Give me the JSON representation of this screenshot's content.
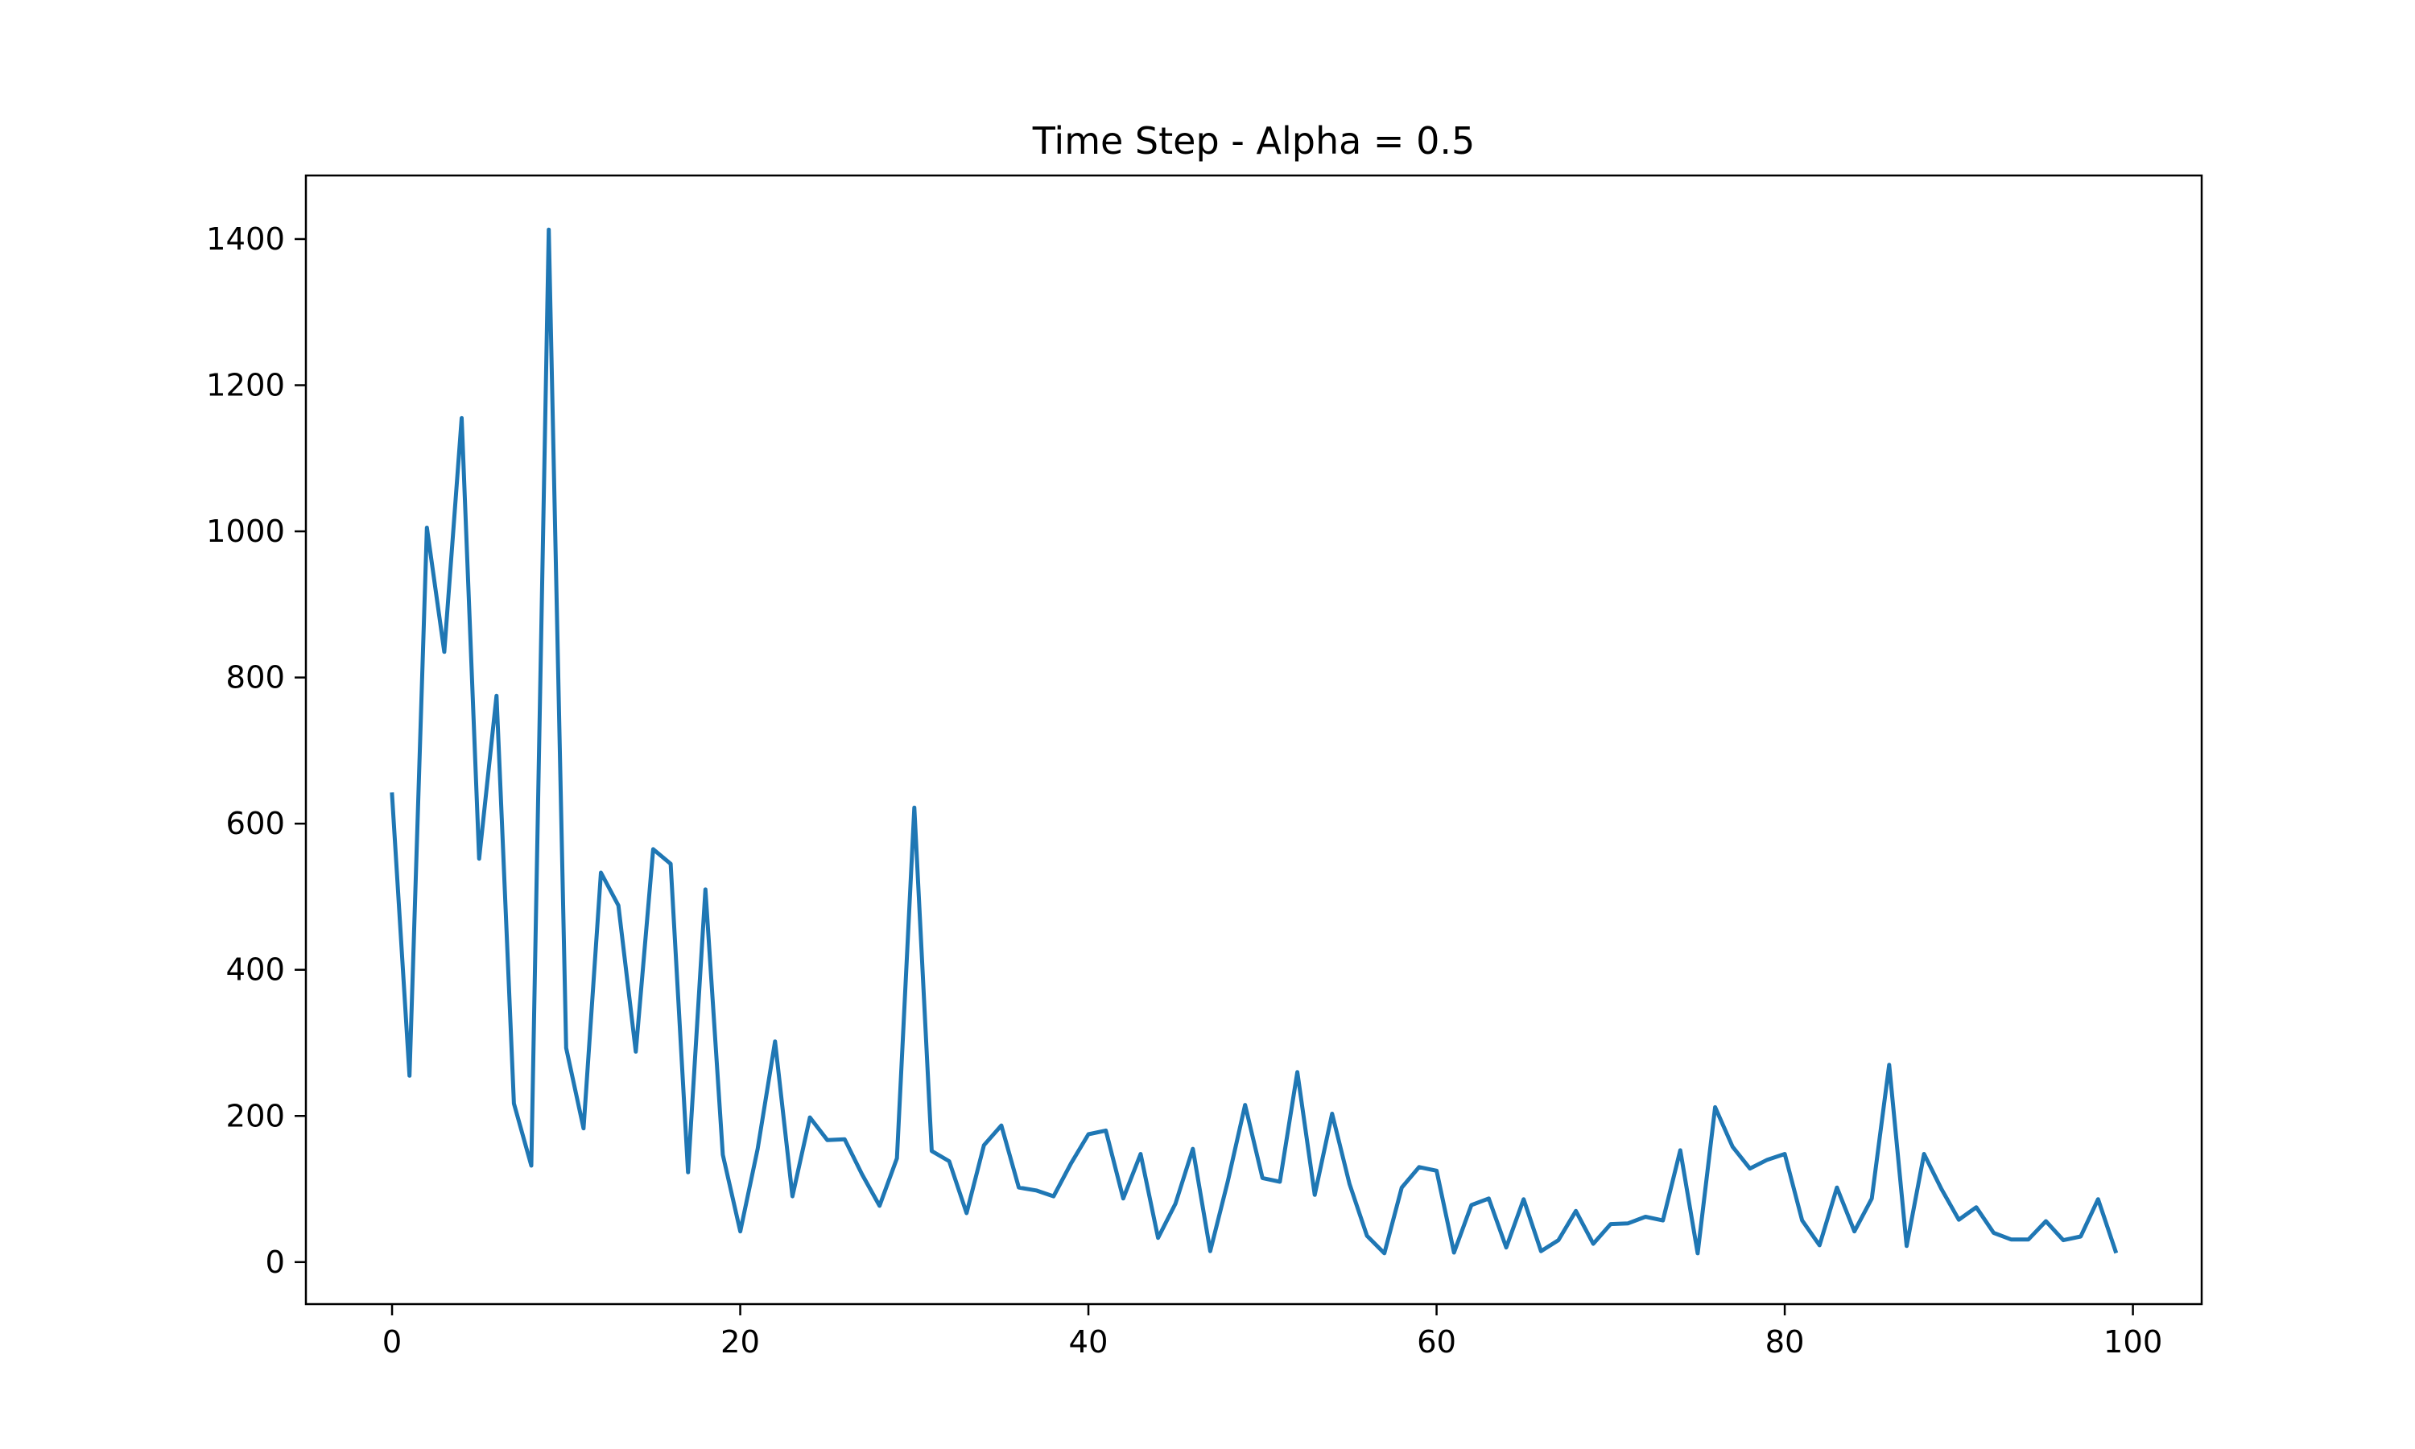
{
  "chart_data": {
    "type": "line",
    "title": "Time Step - Alpha = 0.5",
    "xlabel": "",
    "ylabel": "",
    "xlim": [
      -4.95,
      103.95
    ],
    "ylim": [
      -57.5,
      1487
    ],
    "x_ticks": [
      0,
      20,
      40,
      60,
      80,
      100
    ],
    "y_ticks": [
      0,
      200,
      400,
      600,
      800,
      1000,
      1200,
      1400
    ],
    "grid": false,
    "legend": "none",
    "series": [
      {
        "color": "#1f77b4",
        "x": [
          0,
          1,
          2,
          3,
          4,
          5,
          6,
          7,
          8,
          9,
          10,
          11,
          12,
          13,
          14,
          15,
          16,
          17,
          18,
          19,
          20,
          21,
          22,
          23,
          24,
          25,
          26,
          27,
          28,
          29,
          30,
          31,
          32,
          33,
          34,
          35,
          36,
          37,
          38,
          39,
          40,
          41,
          42,
          43,
          44,
          45,
          46,
          47,
          48,
          49,
          50,
          51,
          52,
          53,
          54,
          55,
          56,
          57,
          58,
          59,
          60,
          61,
          62,
          63,
          64,
          65,
          66,
          67,
          68,
          69,
          70,
          71,
          72,
          73,
          74,
          75,
          76,
          77,
          78,
          79,
          80,
          81,
          82,
          83,
          84,
          85,
          86,
          87,
          88,
          89,
          90,
          91,
          92,
          93,
          94,
          95,
          96,
          97,
          98,
          99
        ],
        "y": [
          640,
          255,
          1005,
          835,
          1155,
          552,
          775,
          217,
          132,
          1413,
          293,
          183,
          533,
          488,
          288,
          565,
          545,
          123,
          510,
          147,
          42,
          155,
          302,
          90,
          198,
          167,
          168,
          120,
          77,
          142,
          622,
          152,
          138,
          67,
          160,
          187,
          102,
          98,
          90,
          135,
          175,
          180,
          87,
          148,
          33,
          80,
          155,
          15,
          110,
          215,
          115,
          110,
          260,
          92,
          203,
          107,
          36,
          12,
          102,
          130,
          125,
          13,
          78,
          87,
          20,
          86,
          15,
          30,
          70,
          25,
          52,
          53,
          62,
          57,
          153,
          12,
          212,
          158,
          128,
          140,
          148,
          57,
          23,
          102,
          42,
          87,
          270,
          22,
          148,
          100,
          58,
          75,
          40,
          31,
          31,
          56,
          30,
          35,
          86,
          15
        ]
      }
    ]
  }
}
